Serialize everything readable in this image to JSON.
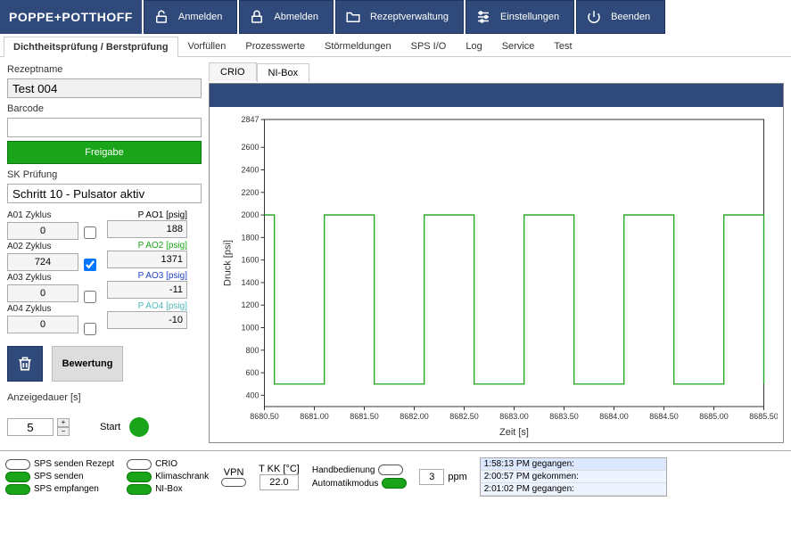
{
  "brand": "POPPE+POTTHOFF",
  "nav": {
    "anmelden": "Anmelden",
    "abmelden": "Abmelden",
    "rezept": "Rezeptverwaltung",
    "einst": "Einstellungen",
    "beenden": "Beenden"
  },
  "tabs": {
    "t1": "Dichtheitsprüfung / Berstprüfung",
    "t2": "Vorfüllen",
    "t3": "Prozesswerte",
    "t4": "Störmeldungen",
    "t5": "SPS I/O",
    "t6": "Log",
    "t7": "Service",
    "t8": "Test"
  },
  "left": {
    "rezeptname_lbl": "Rezeptname",
    "rezeptname_val": "Test 004",
    "barcode_lbl": "Barcode",
    "barcode_val": "",
    "freigabe": "Freigabe",
    "sk_lbl": "SK Prüfung",
    "sk_val": "Schritt 10 - Pulsator aktiv",
    "cycles": [
      {
        "label": "A01 Zyklus",
        "value": "0",
        "checked": false
      },
      {
        "label": "A02 Zyklus",
        "value": "724",
        "checked": true
      },
      {
        "label": "A03 Zyklus",
        "value": "0",
        "checked": false
      },
      {
        "label": "A04 Zyklus",
        "value": "0",
        "checked": false
      }
    ],
    "pao": [
      {
        "label": "P AO1 [psig]",
        "value": "188",
        "color": "#222"
      },
      {
        "label": "P AO2 [psig]",
        "value": "1371",
        "color": "#1aa41a"
      },
      {
        "label": "P AO3 [psig]",
        "value": "-11",
        "color": "#2040c0"
      },
      {
        "label": "P AO4 [psig]",
        "value": "-10",
        "color": "#4fb8b8"
      }
    ],
    "bewertung": "Bewertung",
    "anzeige_lbl": "Anzeigedauer [s]",
    "anzeige_val": "5",
    "start": "Start"
  },
  "chart": {
    "tabs": {
      "crio": "CRIO",
      "nibox": "NI-Box"
    },
    "ylabel": "Druck [psi]",
    "xlabel": "Zeit [s]",
    "ylim": [
      300,
      2847
    ],
    "yticks": [
      400,
      600,
      800,
      1000,
      1200,
      1400,
      1600,
      1800,
      2000,
      2200,
      2400,
      2600,
      2847
    ],
    "xlim": [
      8680.5,
      8685.5
    ],
    "xticks": [
      "8680.50",
      "8681.00",
      "8681.50",
      "8682.00",
      "8682.50",
      "8683.00",
      "8683.50",
      "8684.00",
      "8684.50",
      "8685.00",
      "8685.50"
    ],
    "line_color": "#1aa41a",
    "background": "#ffffff",
    "grid_color": "#333",
    "square_wave": {
      "low": 500,
      "high": 2000,
      "edges": [
        8680.5,
        8680.6,
        8681.1,
        8681.6,
        8682.1,
        8682.6,
        8683.1,
        8683.6,
        8684.1,
        8684.6,
        8685.1,
        8685.5
      ],
      "start_high": true
    }
  },
  "status": {
    "col1": [
      {
        "label": "SPS senden Rezept",
        "on": false
      },
      {
        "label": "SPS senden",
        "on": true
      },
      {
        "label": "SPS empfangen",
        "on": true
      }
    ],
    "col2": [
      {
        "label": "CRIO",
        "on": false
      },
      {
        "label": "Klimaschrank",
        "on": true
      },
      {
        "label": "NI-Box",
        "on": true
      }
    ],
    "vpn_lbl": "VPN",
    "tkk_lbl": "T KK [°C]",
    "tkk_val": "22.0",
    "hand_lbl": "Handbedienung",
    "auto_lbl": "Automatikmodus",
    "ppm_val": "3",
    "ppm_unit": "ppm",
    "log": [
      "1:58:13 PM gegangen:",
      "2:00:57 PM gekommen:",
      "2:01:02 PM gegangen:"
    ]
  }
}
